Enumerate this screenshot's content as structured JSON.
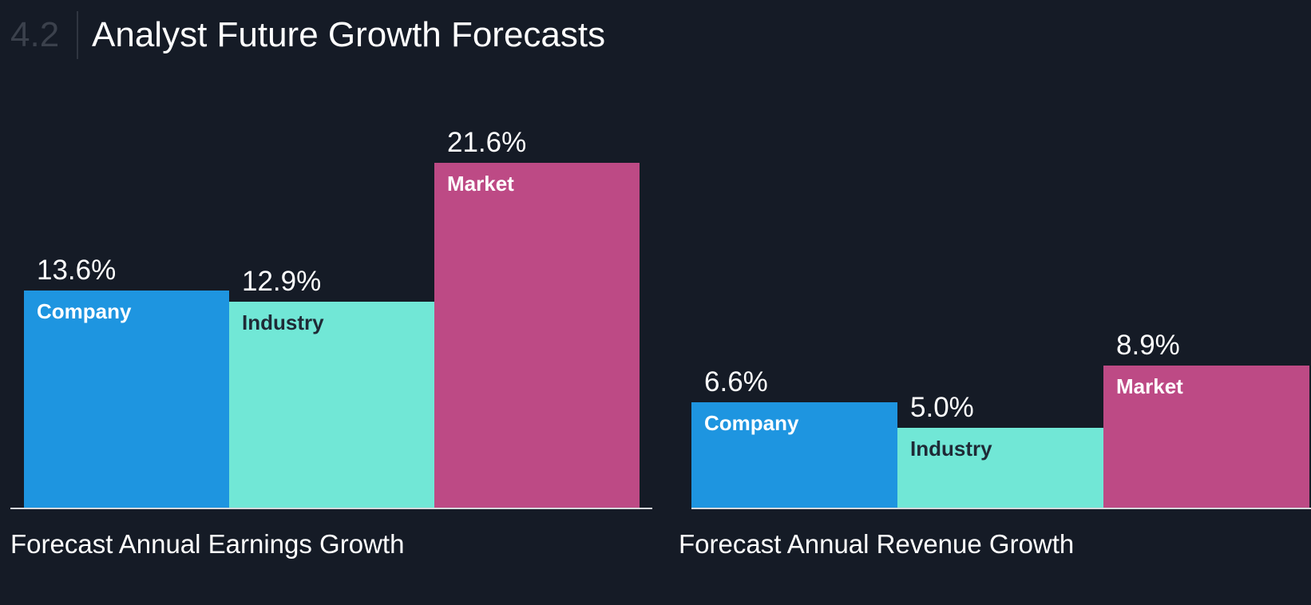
{
  "header": {
    "section_number": "4.2",
    "title": "Analyst Future Growth Forecasts"
  },
  "colors": {
    "background": "#151b26",
    "company": "#1e95e0",
    "industry": "#71e7d6",
    "market": "#bd4a85",
    "label_light": "#ffffff",
    "label_dark": "#1f2a36",
    "baseline": "#d6d8dc"
  },
  "chart_data": [
    {
      "type": "bar",
      "title": "Forecast Annual Earnings Growth",
      "categories": [
        "Company",
        "Industry",
        "Market"
      ],
      "values": [
        13.6,
        12.9,
        21.6
      ],
      "value_labels": [
        "13.6%",
        "12.9%",
        "21.6%"
      ],
      "unit": "%",
      "ylim": [
        0,
        26
      ],
      "grid": false,
      "legend": "none"
    },
    {
      "type": "bar",
      "title": "Forecast Annual Revenue Growth",
      "categories": [
        "Company",
        "Industry",
        "Market"
      ],
      "values": [
        6.6,
        5.0,
        8.9
      ],
      "value_labels": [
        "6.6%",
        "5.0%",
        "8.9%"
      ],
      "unit": "%",
      "ylim": [
        0,
        26
      ],
      "grid": false,
      "legend": "none"
    }
  ]
}
